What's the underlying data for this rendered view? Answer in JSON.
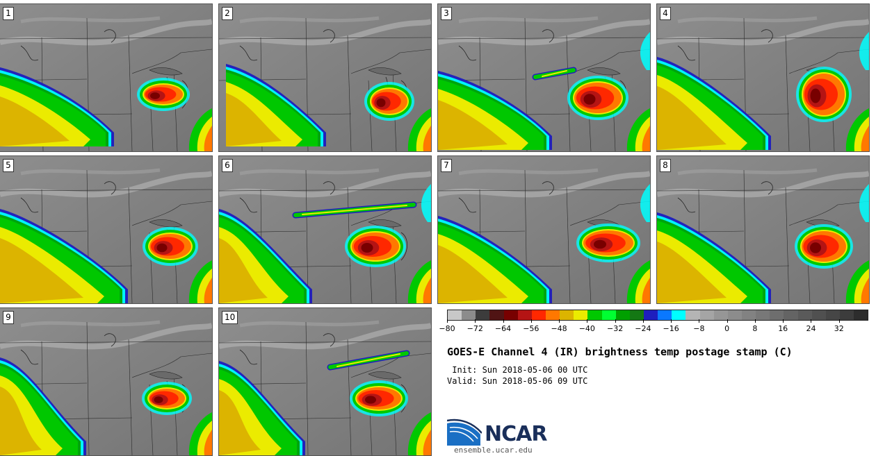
{
  "figure": {
    "title": "GOES-E Channel 4 (IR) brightness temp postage stamp (C)",
    "init": " Init: Sun 2018-05-06 00 UTC",
    "valid": "Valid: Sun 2018-05-06 09 UTC",
    "logo_text": "NCAR",
    "site": "ensemble.ucar.edu"
  },
  "panels": [
    {
      "label": "1"
    },
    {
      "label": "2"
    },
    {
      "label": "3"
    },
    {
      "label": "4"
    },
    {
      "label": "5"
    },
    {
      "label": "6"
    },
    {
      "label": "7"
    },
    {
      "label": "8"
    },
    {
      "label": "9"
    },
    {
      "label": "10"
    }
  ],
  "colorbar": {
    "range": [
      -80,
      40
    ],
    "tick_labels": [
      "−80",
      "−72",
      "−64",
      "−56",
      "−48",
      "−40",
      "−32",
      "−24",
      "−16",
      "−8",
      "0",
      "8",
      "16",
      "24",
      "32"
    ],
    "colors": [
      "#c8c8c8",
      "#8c8c8c",
      "#3c3c3c",
      "#501414",
      "#780000",
      "#b41414",
      "#ff2800",
      "#ff7800",
      "#dcb400",
      "#ebeb00",
      "#00c800",
      "#00ff32",
      "#00a000",
      "#147814",
      "#1e1ebe",
      "#0a78ff",
      "#00ffff",
      "#b4b4b4",
      "#a5a5a5",
      "#969696",
      "#8c8c8c",
      "#828282",
      "#787878",
      "#6e6e6e",
      "#646464",
      "#5a5a5a",
      "#505050",
      "#464646",
      "#3c3c3c",
      "#2d2d2d"
    ]
  },
  "chart_data": {
    "type": "heatmap",
    "title": "GOES-E Channel 4 (IR) brightness temp postage stamp (C)",
    "units": "C",
    "colorbar_range": [
      -80,
      40
    ],
    "members": [
      "1",
      "2",
      "3",
      "4",
      "5",
      "6",
      "7",
      "8",
      "9",
      "10"
    ]
  }
}
